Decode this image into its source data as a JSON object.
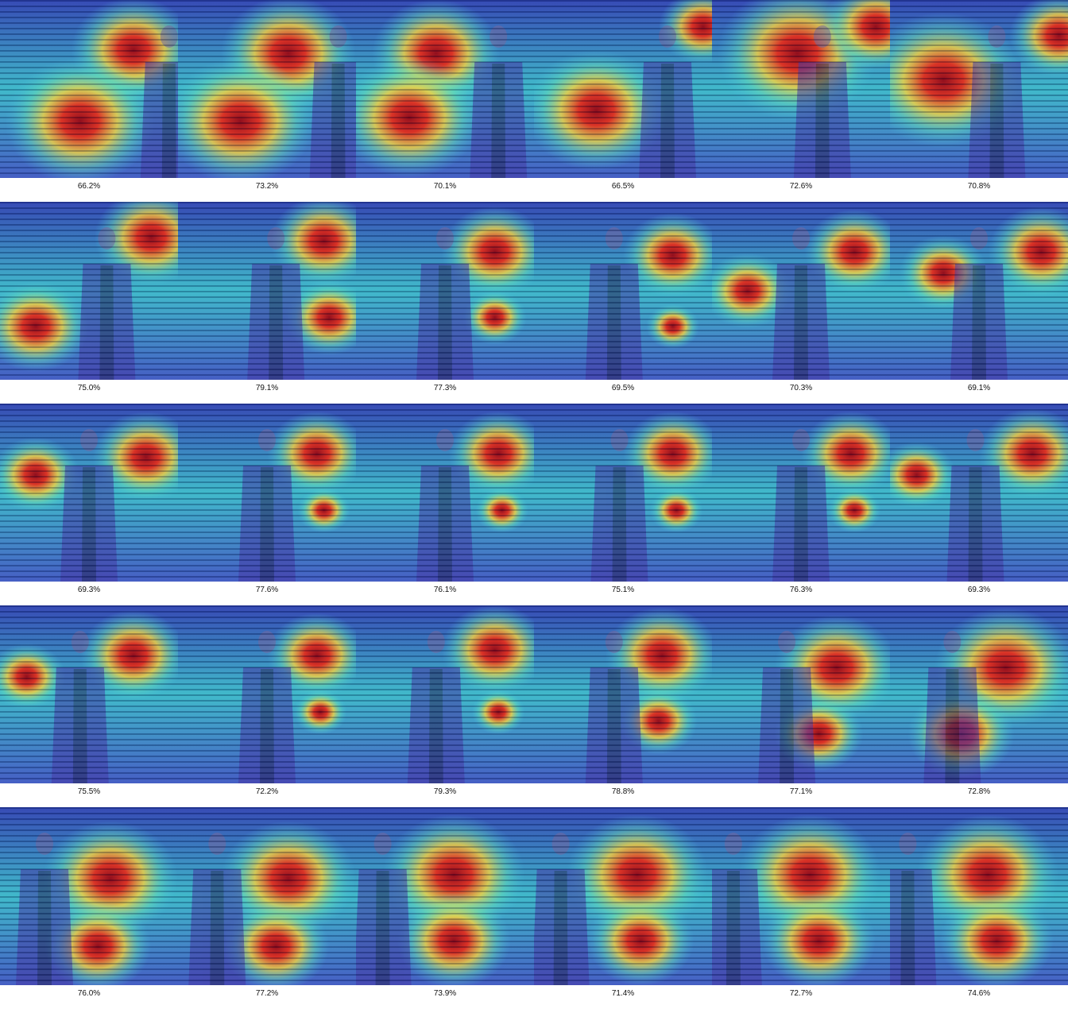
{
  "grid": {
    "rows": 5,
    "cols": 6,
    "frames": [
      {
        "caption": "66.2%",
        "person_x": 0.95,
        "hot": [
          [
            0.75,
            0.28,
            0.35
          ],
          [
            0.45,
            0.68,
            0.42
          ]
        ]
      },
      {
        "caption": "73.2%",
        "person_x": 0.9,
        "hot": [
          [
            0.62,
            0.3,
            0.38
          ],
          [
            0.35,
            0.68,
            0.42
          ]
        ]
      },
      {
        "caption": "70.1%",
        "person_x": 0.8,
        "hot": [
          [
            0.45,
            0.3,
            0.36
          ],
          [
            0.3,
            0.66,
            0.4
          ]
        ]
      },
      {
        "caption": "66.5%",
        "person_x": 0.75,
        "hot": [
          [
            0.95,
            0.15,
            0.25
          ],
          [
            0.35,
            0.62,
            0.4
          ]
        ]
      },
      {
        "caption": "72.6%",
        "person_x": 0.62,
        "hot": [
          [
            0.48,
            0.3,
            0.45
          ],
          [
            0.92,
            0.15,
            0.3
          ]
        ]
      },
      {
        "caption": "70.8%",
        "person_x": 0.6,
        "hot": [
          [
            0.3,
            0.45,
            0.45
          ],
          [
            0.95,
            0.2,
            0.28
          ]
        ]
      },
      {
        "caption": "75.0%",
        "person_x": 0.6,
        "hot": [
          [
            0.85,
            0.2,
            0.32
          ],
          [
            0.2,
            0.7,
            0.3
          ]
        ]
      },
      {
        "caption": "79.1%",
        "person_x": 0.55,
        "hot": [
          [
            0.82,
            0.22,
            0.3
          ],
          [
            0.85,
            0.65,
            0.25
          ]
        ]
      },
      {
        "caption": "77.3%",
        "person_x": 0.5,
        "hot": [
          [
            0.78,
            0.28,
            0.3
          ],
          [
            0.78,
            0.65,
            0.18
          ]
        ]
      },
      {
        "caption": "69.5%",
        "person_x": 0.45,
        "hot": [
          [
            0.78,
            0.3,
            0.28
          ],
          [
            0.78,
            0.7,
            0.15
          ]
        ]
      },
      {
        "caption": "70.3%",
        "person_x": 0.5,
        "hot": [
          [
            0.8,
            0.28,
            0.28
          ],
          [
            0.2,
            0.5,
            0.25
          ]
        ]
      },
      {
        "caption": "69.1%",
        "person_x": 0.5,
        "hot": [
          [
            0.85,
            0.28,
            0.3
          ],
          [
            0.3,
            0.4,
            0.25
          ]
        ]
      },
      {
        "caption": "69.3%",
        "person_x": 0.5,
        "hot": [
          [
            0.82,
            0.3,
            0.3
          ],
          [
            0.2,
            0.4,
            0.25
          ]
        ]
      },
      {
        "caption": "77.6%",
        "person_x": 0.5,
        "hot": [
          [
            0.78,
            0.28,
            0.28
          ],
          [
            0.82,
            0.6,
            0.15
          ]
        ]
      },
      {
        "caption": "76.1%",
        "person_x": 0.5,
        "hot": [
          [
            0.8,
            0.28,
            0.28
          ],
          [
            0.82,
            0.6,
            0.15
          ]
        ]
      },
      {
        "caption": "75.1%",
        "person_x": 0.48,
        "hot": [
          [
            0.78,
            0.28,
            0.28
          ],
          [
            0.8,
            0.6,
            0.15
          ]
        ]
      },
      {
        "caption": "76.3%",
        "person_x": 0.5,
        "hot": [
          [
            0.78,
            0.28,
            0.28
          ],
          [
            0.8,
            0.6,
            0.15
          ]
        ]
      },
      {
        "caption": "69.3%",
        "person_x": 0.48,
        "hot": [
          [
            0.8,
            0.28,
            0.3
          ],
          [
            0.15,
            0.4,
            0.22
          ]
        ]
      },
      {
        "caption": "75.5%",
        "person_x": 0.45,
        "hot": [
          [
            0.75,
            0.28,
            0.3
          ],
          [
            0.15,
            0.4,
            0.22
          ]
        ]
      },
      {
        "caption": "72.2%",
        "person_x": 0.5,
        "hot": [
          [
            0.78,
            0.28,
            0.28
          ],
          [
            0.8,
            0.6,
            0.15
          ]
        ]
      },
      {
        "caption": "79.3%",
        "person_x": 0.45,
        "hot": [
          [
            0.78,
            0.25,
            0.3
          ],
          [
            0.8,
            0.6,
            0.15
          ]
        ]
      },
      {
        "caption": "78.8%",
        "person_x": 0.45,
        "hot": [
          [
            0.72,
            0.28,
            0.32
          ],
          [
            0.7,
            0.65,
            0.22
          ]
        ]
      },
      {
        "caption": "77.1%",
        "person_x": 0.42,
        "hot": [
          [
            0.7,
            0.35,
            0.35
          ],
          [
            0.6,
            0.72,
            0.25
          ]
        ]
      },
      {
        "caption": "72.8%",
        "person_x": 0.35,
        "hot": [
          [
            0.65,
            0.35,
            0.4
          ],
          [
            0.4,
            0.72,
            0.3
          ]
        ]
      },
      {
        "caption": "76.0%",
        "person_x": 0.25,
        "hot": [
          [
            0.62,
            0.4,
            0.38
          ],
          [
            0.55,
            0.78,
            0.3
          ]
        ]
      },
      {
        "caption": "77.2%",
        "person_x": 0.22,
        "hot": [
          [
            0.62,
            0.4,
            0.38
          ],
          [
            0.55,
            0.78,
            0.3
          ]
        ]
      },
      {
        "caption": "73.9%",
        "person_x": 0.15,
        "hot": [
          [
            0.55,
            0.38,
            0.4
          ],
          [
            0.55,
            0.75,
            0.32
          ]
        ]
      },
      {
        "caption": "71.4%",
        "person_x": 0.15,
        "hot": [
          [
            0.58,
            0.38,
            0.4
          ],
          [
            0.6,
            0.75,
            0.3
          ]
        ]
      },
      {
        "caption": "72.7%",
        "person_x": 0.12,
        "hot": [
          [
            0.55,
            0.38,
            0.4
          ],
          [
            0.6,
            0.75,
            0.32
          ]
        ]
      },
      {
        "caption": "74.6%",
        "person_x": 0.1,
        "hot": [
          [
            0.55,
            0.38,
            0.4
          ],
          [
            0.6,
            0.75,
            0.32
          ]
        ]
      }
    ]
  }
}
